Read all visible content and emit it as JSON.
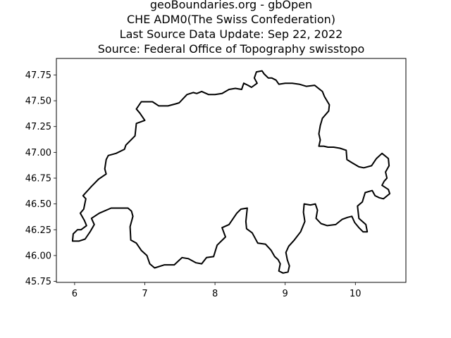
{
  "title": {
    "lines": [
      "geoBoundaries.org - gbOpen",
      "CHE ADM0(The Swiss Confederation)",
      "Last Source Data Update: Sep 22, 2022",
      "Source: Federal Office of Topography swisstopo"
    ]
  },
  "chart_data": {
    "type": "line",
    "title": "geoBoundaries.org - gbOpen\nCHE ADM0(The Swiss Confederation)\nLast Source Data Update: Sep 22, 2022\nSource: Federal Office of Topography swisstopo",
    "xlabel": "",
    "ylabel": "",
    "xlim": [
      5.74,
      10.72
    ],
    "ylim": [
      45.74,
      47.91
    ],
    "x_ticks": [
      "6",
      "7",
      "8",
      "9",
      "10"
    ],
    "y_ticks": [
      "45.75",
      "46.00",
      "46.25",
      "46.50",
      "46.75",
      "47.00",
      "47.25",
      "47.50",
      "47.75"
    ],
    "grid": false,
    "line_color": "#000000",
    "series": [
      {
        "points": [
          [
            5.97,
            46.14
          ],
          [
            5.98,
            46.21
          ],
          [
            6.04,
            46.25
          ],
          [
            6.09,
            46.25
          ],
          [
            6.17,
            46.29
          ],
          [
            6.14,
            46.34
          ],
          [
            6.08,
            46.41
          ],
          [
            6.13,
            46.45
          ],
          [
            6.16,
            46.55
          ],
          [
            6.12,
            46.58
          ],
          [
            6.24,
            46.67
          ],
          [
            6.34,
            46.74
          ],
          [
            6.45,
            46.79
          ],
          [
            6.43,
            46.84
          ],
          [
            6.45,
            46.93
          ],
          [
            6.48,
            46.97
          ],
          [
            6.59,
            46.99
          ],
          [
            6.71,
            47.03
          ],
          [
            6.73,
            47.07
          ],
          [
            6.86,
            47.16
          ],
          [
            6.88,
            47.28
          ],
          [
            7.0,
            47.31
          ],
          [
            6.93,
            47.38
          ],
          [
            6.88,
            47.42
          ],
          [
            6.95,
            47.49
          ],
          [
            7.03,
            47.49
          ],
          [
            7.11,
            47.49
          ],
          [
            7.2,
            47.45
          ],
          [
            7.33,
            47.45
          ],
          [
            7.44,
            47.47
          ],
          [
            7.49,
            47.48
          ],
          [
            7.6,
            47.56
          ],
          [
            7.69,
            47.58
          ],
          [
            7.74,
            47.57
          ],
          [
            7.81,
            47.59
          ],
          [
            7.91,
            47.56
          ],
          [
            8.0,
            47.56
          ],
          [
            8.1,
            47.57
          ],
          [
            8.2,
            47.61
          ],
          [
            8.29,
            47.62
          ],
          [
            8.38,
            47.61
          ],
          [
            8.41,
            47.67
          ],
          [
            8.47,
            47.65
          ],
          [
            8.52,
            47.63
          ],
          [
            8.6,
            47.67
          ],
          [
            8.56,
            47.72
          ],
          [
            8.59,
            47.78
          ],
          [
            8.67,
            47.79
          ],
          [
            8.7,
            47.76
          ],
          [
            8.76,
            47.72
          ],
          [
            8.81,
            47.72
          ],
          [
            8.87,
            47.7
          ],
          [
            8.91,
            47.66
          ],
          [
            9.0,
            47.67
          ],
          [
            9.1,
            47.67
          ],
          [
            9.2,
            47.66
          ],
          [
            9.3,
            47.64
          ],
          [
            9.42,
            47.65
          ],
          [
            9.53,
            47.59
          ],
          [
            9.56,
            47.54
          ],
          [
            9.63,
            47.46
          ],
          [
            9.62,
            47.4
          ],
          [
            9.53,
            47.33
          ],
          [
            9.5,
            47.26
          ],
          [
            9.48,
            47.18
          ],
          [
            9.5,
            47.12
          ],
          [
            9.48,
            47.06
          ],
          [
            9.55,
            47.06
          ],
          [
            9.61,
            47.05
          ],
          [
            9.69,
            47.05
          ],
          [
            9.78,
            47.04
          ],
          [
            9.87,
            47.02
          ],
          [
            9.88,
            46.93
          ],
          [
            9.95,
            46.9
          ],
          [
            10.05,
            46.86
          ],
          [
            10.12,
            46.85
          ],
          [
            10.23,
            46.87
          ],
          [
            10.3,
            46.94
          ],
          [
            10.38,
            46.99
          ],
          [
            10.47,
            46.94
          ],
          [
            10.48,
            46.87
          ],
          [
            10.43,
            46.81
          ],
          [
            10.45,
            46.75
          ],
          [
            10.41,
            46.72
          ],
          [
            10.38,
            46.68
          ],
          [
            10.47,
            46.64
          ],
          [
            10.49,
            46.6
          ],
          [
            10.4,
            46.55
          ],
          [
            10.34,
            46.56
          ],
          [
            10.28,
            46.58
          ],
          [
            10.24,
            46.63
          ],
          [
            10.14,
            46.61
          ],
          [
            10.1,
            46.52
          ],
          [
            10.03,
            46.48
          ],
          [
            10.05,
            46.36
          ],
          [
            10.15,
            46.3
          ],
          [
            10.17,
            46.23
          ],
          [
            10.11,
            46.23
          ],
          [
            10.05,
            46.27
          ],
          [
            9.99,
            46.32
          ],
          [
            9.95,
            46.38
          ],
          [
            9.89,
            46.37
          ],
          [
            9.81,
            46.35
          ],
          [
            9.72,
            46.3
          ],
          [
            9.6,
            46.29
          ],
          [
            9.51,
            46.31
          ],
          [
            9.44,
            46.36
          ],
          [
            9.46,
            46.44
          ],
          [
            9.43,
            46.5
          ],
          [
            9.36,
            46.49
          ],
          [
            9.27,
            46.5
          ],
          [
            9.26,
            46.42
          ],
          [
            9.28,
            46.33
          ],
          [
            9.22,
            46.23
          ],
          [
            9.13,
            46.15
          ],
          [
            9.05,
            46.09
          ],
          [
            9.01,
            46.03
          ],
          [
            9.03,
            45.96
          ],
          [
            9.06,
            45.9
          ],
          [
            9.04,
            45.84
          ],
          [
            8.97,
            45.83
          ],
          [
            8.91,
            45.85
          ],
          [
            8.93,
            45.92
          ],
          [
            8.9,
            45.96
          ],
          [
            8.85,
            45.99
          ],
          [
            8.8,
            46.05
          ],
          [
            8.72,
            46.11
          ],
          [
            8.61,
            46.12
          ],
          [
            8.53,
            46.22
          ],
          [
            8.45,
            46.26
          ],
          [
            8.44,
            46.33
          ],
          [
            8.46,
            46.46
          ],
          [
            8.37,
            46.45
          ],
          [
            8.31,
            46.41
          ],
          [
            8.2,
            46.3
          ],
          [
            8.1,
            46.27
          ],
          [
            8.15,
            46.18
          ],
          [
            8.03,
            46.1
          ],
          [
            7.98,
            45.99
          ],
          [
            7.88,
            45.98
          ],
          [
            7.81,
            45.92
          ],
          [
            7.73,
            45.93
          ],
          [
            7.62,
            45.97
          ],
          [
            7.53,
            45.98
          ],
          [
            7.42,
            45.91
          ],
          [
            7.28,
            45.91
          ],
          [
            7.14,
            45.88
          ],
          [
            7.07,
            45.92
          ],
          [
            7.03,
            46.0
          ],
          [
            6.95,
            46.05
          ],
          [
            6.88,
            46.12
          ],
          [
            6.8,
            46.15
          ],
          [
            6.79,
            46.28
          ],
          [
            6.83,
            46.38
          ],
          [
            6.81,
            46.43
          ],
          [
            6.76,
            46.46
          ],
          [
            6.66,
            46.46
          ],
          [
            6.52,
            46.46
          ],
          [
            6.35,
            46.41
          ],
          [
            6.24,
            46.36
          ],
          [
            6.28,
            46.3
          ],
          [
            6.22,
            46.23
          ],
          [
            6.15,
            46.16
          ],
          [
            6.06,
            46.14
          ],
          [
            5.97,
            46.14
          ]
        ]
      }
    ]
  }
}
